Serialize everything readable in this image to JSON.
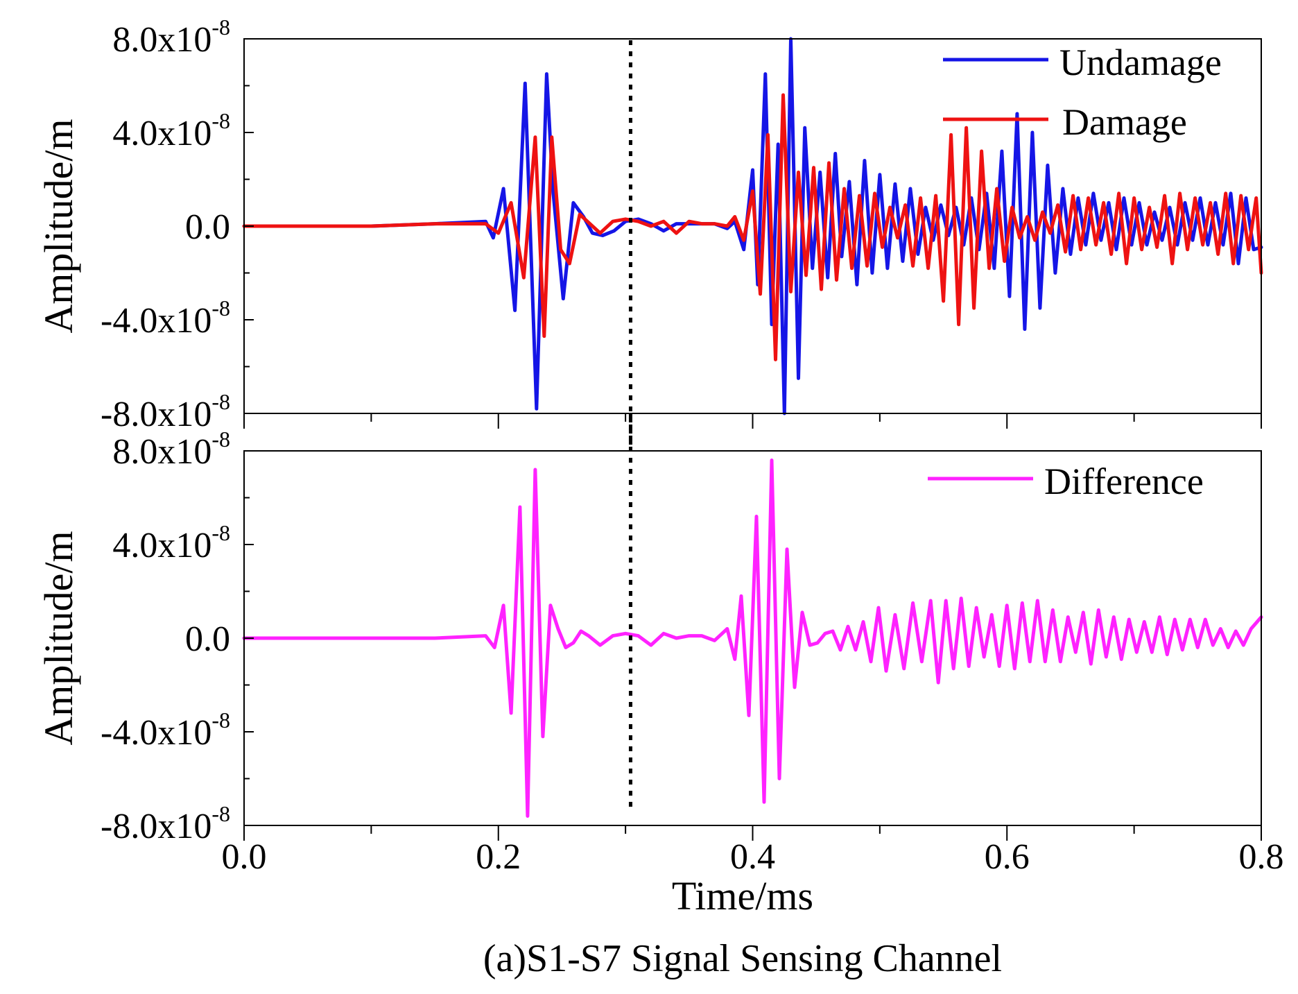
{
  "caption": "(a)S1-S7 Signal Sensing Channel",
  "chart_data": [
    {
      "type": "line",
      "panel": "top",
      "ylabel": "Amplitude/m",
      "ylim": [
        -8e-08,
        8e-08
      ],
      "xlim": [
        0.0,
        0.8
      ],
      "yticks": [
        {
          "value": 8e-08,
          "base": "8.0x10",
          "exp": "-8"
        },
        {
          "value": 4e-08,
          "base": "4.0x10",
          "exp": "-8"
        },
        {
          "value": 0.0,
          "base": "0.0",
          "exp": ""
        },
        {
          "value": -4e-08,
          "base": "-4.0x10",
          "exp": "-8"
        },
        {
          "value": -8e-08,
          "base": "-8.0x10",
          "exp": "-8"
        }
      ],
      "legend_position": "top-right",
      "marker_line_x": 0.304,
      "series": [
        {
          "name": "Undamage",
          "color": "#1515e6",
          "x": [
            0.0,
            0.05,
            0.1,
            0.15,
            0.19,
            0.196,
            0.204,
            0.213,
            0.221,
            0.23,
            0.238,
            0.243,
            0.251,
            0.259,
            0.267,
            0.274,
            0.282,
            0.291,
            0.3,
            0.31,
            0.32,
            0.33,
            0.34,
            0.35,
            0.36,
            0.37,
            0.38,
            0.386,
            0.393,
            0.4,
            0.404,
            0.41,
            0.415,
            0.42,
            0.425,
            0.43,
            0.436,
            0.441,
            0.447,
            0.453,
            0.459,
            0.465,
            0.47,
            0.476,
            0.482,
            0.488,
            0.494,
            0.5,
            0.506,
            0.512,
            0.518,
            0.524,
            0.53,
            0.536,
            0.542,
            0.548,
            0.554,
            0.56,
            0.566,
            0.572,
            0.578,
            0.584,
            0.59,
            0.596,
            0.602,
            0.608,
            0.614,
            0.62,
            0.626,
            0.632,
            0.638,
            0.644,
            0.65,
            0.656,
            0.662,
            0.668,
            0.674,
            0.68,
            0.686,
            0.692,
            0.698,
            0.704,
            0.71,
            0.716,
            0.722,
            0.728,
            0.734,
            0.74,
            0.746,
            0.752,
            0.758,
            0.764,
            0.77,
            0.776,
            0.782,
            0.788,
            0.794,
            0.8
          ],
          "y": [
            0.0,
            0.0,
            0.0,
            1e-09,
            2e-09,
            -5e-09,
            1.6e-08,
            -3.6e-08,
            6.1e-08,
            -7.8e-08,
            6.5e-08,
            1.5e-08,
            -3.1e-08,
            1e-08,
            4e-09,
            -3e-09,
            -4e-09,
            -2e-09,
            2e-09,
            3e-09,
            1e-09,
            -2e-09,
            1e-09,
            1e-09,
            1e-09,
            1e-09,
            -1e-09,
            2e-09,
            -1e-08,
            2.4e-08,
            -2.5e-08,
            6.5e-08,
            -4.2e-08,
            3.5e-08,
            -8e-08,
            8e-08,
            -6.5e-08,
            4.2e-08,
            -1.8e-08,
            2.3e-08,
            -2.2e-08,
            3.1e-08,
            -1.3e-08,
            1.9e-08,
            -2.5e-08,
            2.8e-08,
            -2e-08,
            2.2e-08,
            -1.8e-08,
            1.8e-08,
            -1.5e-08,
            1.6e-08,
            -1.2e-08,
            8e-09,
            -6e-09,
            9e-09,
            -4e-09,
            8e-09,
            -8e-09,
            1.2e-08,
            -1e-08,
            1.4e-08,
            -1.8e-08,
            3.2e-08,
            -3e-08,
            4.8e-08,
            -4.4e-08,
            4e-08,
            -3.5e-08,
            2.6e-08,
            -2e-08,
            1.6e-08,
            -1.2e-08,
            1.2e-08,
            -8e-09,
            1.4e-08,
            -6e-09,
            1e-08,
            -1e-08,
            1.2e-08,
            -8e-09,
            1e-08,
            -8e-09,
            6e-09,
            -6e-09,
            8e-09,
            -8e-09,
            1e-08,
            -6e-09,
            1.2e-08,
            -8e-09,
            1e-08,
            -8e-09,
            1.4e-08,
            -1.6e-08,
            1.2e-08,
            -1e-08,
            -9e-09
          ]
        },
        {
          "name": "Damage",
          "color": "#ee1212",
          "x": [
            0.0,
            0.05,
            0.1,
            0.15,
            0.19,
            0.2,
            0.21,
            0.22,
            0.229,
            0.236,
            0.242,
            0.249,
            0.256,
            0.264,
            0.272,
            0.28,
            0.29,
            0.3,
            0.31,
            0.32,
            0.33,
            0.34,
            0.35,
            0.36,
            0.37,
            0.38,
            0.386,
            0.393,
            0.4,
            0.406,
            0.412,
            0.418,
            0.424,
            0.43,
            0.436,
            0.442,
            0.448,
            0.454,
            0.46,
            0.466,
            0.472,
            0.478,
            0.484,
            0.49,
            0.496,
            0.502,
            0.508,
            0.514,
            0.52,
            0.526,
            0.532,
            0.538,
            0.544,
            0.55,
            0.556,
            0.562,
            0.568,
            0.574,
            0.58,
            0.586,
            0.592,
            0.598,
            0.604,
            0.61,
            0.616,
            0.622,
            0.628,
            0.634,
            0.64,
            0.646,
            0.652,
            0.658,
            0.664,
            0.67,
            0.676,
            0.682,
            0.688,
            0.694,
            0.7,
            0.706,
            0.712,
            0.718,
            0.724,
            0.73,
            0.736,
            0.742,
            0.748,
            0.754,
            0.76,
            0.766,
            0.772,
            0.778,
            0.784,
            0.79,
            0.796,
            0.8
          ],
          "y": [
            0.0,
            0.0,
            0.0,
            1e-09,
            1e-09,
            -3e-09,
            1e-08,
            -2.2e-08,
            3.8e-08,
            -4.7e-08,
            3.8e-08,
            -1e-08,
            -1.6e-08,
            5e-09,
            1e-09,
            -3e-09,
            2e-09,
            3e-09,
            2e-09,
            0.0,
            2e-09,
            -3e-09,
            2e-09,
            1e-09,
            1e-09,
            0.0,
            4e-09,
            -6e-09,
            1.5e-08,
            -2.9e-08,
            3.9e-08,
            -5.7e-08,
            5.6e-08,
            -2.8e-08,
            2.3e-08,
            -2.1e-08,
            2.5e-08,
            -2.7e-08,
            2.7e-08,
            -2.3e-08,
            1.6e-08,
            -1.8e-08,
            1.3e-08,
            -1.7e-08,
            1.4e-08,
            -9e-09,
            8e-09,
            -5e-09,
            9e-09,
            -1.7e-08,
            1.2e-08,
            -1.8e-08,
            1.3e-08,
            -3.2e-08,
            3.9e-08,
            -4.2e-08,
            4.2e-08,
            -3.5e-08,
            3.2e-08,
            -1.8e-08,
            1.6e-08,
            -1.5e-08,
            8e-09,
            -5e-09,
            4e-09,
            -6e-09,
            6e-09,
            -3e-09,
            9e-09,
            -1.1e-08,
            1.3e-08,
            -1e-08,
            1.2e-08,
            -8e-09,
            1e-08,
            -1.2e-08,
            1.4e-08,
            -1.6e-08,
            1.2e-08,
            -1e-08,
            8e-09,
            -9e-09,
            1.3e-08,
            -1.6e-08,
            1.4e-08,
            -1e-08,
            1.2e-08,
            -8e-09,
            1e-08,
            -1.2e-08,
            1.4e-08,
            -1.6e-08,
            1.3e-08,
            -1e-08,
            1.2e-08,
            -2e-08
          ]
        }
      ]
    },
    {
      "type": "line",
      "panel": "bottom",
      "xlabel": "Time/ms",
      "ylabel": "Amplitude/m",
      "ylim": [
        -8e-08,
        8e-08
      ],
      "xlim": [
        0.0,
        0.8
      ],
      "xticks": [
        {
          "value": 0.0,
          "label": "0.0"
        },
        {
          "value": 0.2,
          "label": "0.2"
        },
        {
          "value": 0.4,
          "label": "0.4"
        },
        {
          "value": 0.6,
          "label": "0.6"
        },
        {
          "value": 0.8,
          "label": "0.8"
        }
      ],
      "yticks": [
        {
          "value": 8e-08,
          "base": "8.0x10",
          "exp": "-8"
        },
        {
          "value": 4e-08,
          "base": "4.0x10",
          "exp": "-8"
        },
        {
          "value": 0.0,
          "base": "0.0",
          "exp": ""
        },
        {
          "value": -4e-08,
          "base": "-4.0x10",
          "exp": "-8"
        },
        {
          "value": -8e-08,
          "base": "-8.0x10",
          "exp": "-8"
        }
      ],
      "legend_position": "top-right",
      "marker_line_x": 0.304,
      "series": [
        {
          "name": "Difference",
          "color": "#ff22ff",
          "x": [
            0.0,
            0.05,
            0.1,
            0.15,
            0.19,
            0.197,
            0.204,
            0.21,
            0.217,
            0.223,
            0.229,
            0.235,
            0.241,
            0.247,
            0.253,
            0.259,
            0.265,
            0.271,
            0.28,
            0.29,
            0.3,
            0.31,
            0.32,
            0.33,
            0.34,
            0.35,
            0.36,
            0.37,
            0.38,
            0.386,
            0.391,
            0.397,
            0.403,
            0.409,
            0.415,
            0.421,
            0.427,
            0.433,
            0.439,
            0.445,
            0.451,
            0.457,
            0.463,
            0.469,
            0.475,
            0.481,
            0.487,
            0.493,
            0.499,
            0.505,
            0.512,
            0.519,
            0.526,
            0.533,
            0.54,
            0.546,
            0.552,
            0.558,
            0.564,
            0.57,
            0.576,
            0.582,
            0.588,
            0.594,
            0.6,
            0.606,
            0.612,
            0.618,
            0.624,
            0.63,
            0.636,
            0.642,
            0.648,
            0.654,
            0.66,
            0.666,
            0.672,
            0.678,
            0.684,
            0.69,
            0.696,
            0.702,
            0.708,
            0.714,
            0.72,
            0.726,
            0.732,
            0.738,
            0.744,
            0.75,
            0.756,
            0.762,
            0.768,
            0.774,
            0.78,
            0.786,
            0.792,
            0.8
          ],
          "y": [
            0.0,
            0.0,
            0.0,
            0.0,
            1e-09,
            -4e-09,
            1.4e-08,
            -3.2e-08,
            5.6e-08,
            -7.6e-08,
            7.2e-08,
            -4.2e-08,
            1.4e-08,
            4e-09,
            -4e-09,
            -2e-09,
            3e-09,
            1e-09,
            -3e-09,
            1e-09,
            2e-09,
            1e-09,
            -3e-09,
            2e-09,
            0.0,
            1e-09,
            1e-09,
            -1e-09,
            4e-09,
            -9e-09,
            1.8e-08,
            -3.3e-08,
            5.2e-08,
            -7e-08,
            7.6e-08,
            -6e-08,
            3.8e-08,
            -2.1e-08,
            1.1e-08,
            -3e-09,
            -2e-09,
            2e-09,
            3e-09,
            -5e-09,
            5e-09,
            -5e-09,
            7e-09,
            -1e-08,
            1.3e-08,
            -1.4e-08,
            1e-08,
            -1.3e-08,
            1.5e-08,
            -1e-08,
            1.6e-08,
            -1.9e-08,
            1.6e-08,
            -1.3e-08,
            1.7e-08,
            -1.2e-08,
            1.3e-08,
            -8e-09,
            1e-08,
            -1.2e-08,
            1.4e-08,
            -1.3e-08,
            1.5e-08,
            -1e-08,
            1.6e-08,
            -1e-08,
            1.2e-08,
            -1e-08,
            9e-09,
            -6e-09,
            1.1e-08,
            -1.1e-08,
            1.2e-08,
            -8e-09,
            9e-09,
            -9e-09,
            8e-09,
            -6e-09,
            7e-09,
            -6e-09,
            9e-09,
            -7e-09,
            8e-09,
            -5e-09,
            8e-09,
            -4e-09,
            8e-09,
            -3e-09,
            4e-09,
            -4e-09,
            3e-09,
            -3e-09,
            4e-09,
            9e-09
          ]
        }
      ]
    }
  ]
}
